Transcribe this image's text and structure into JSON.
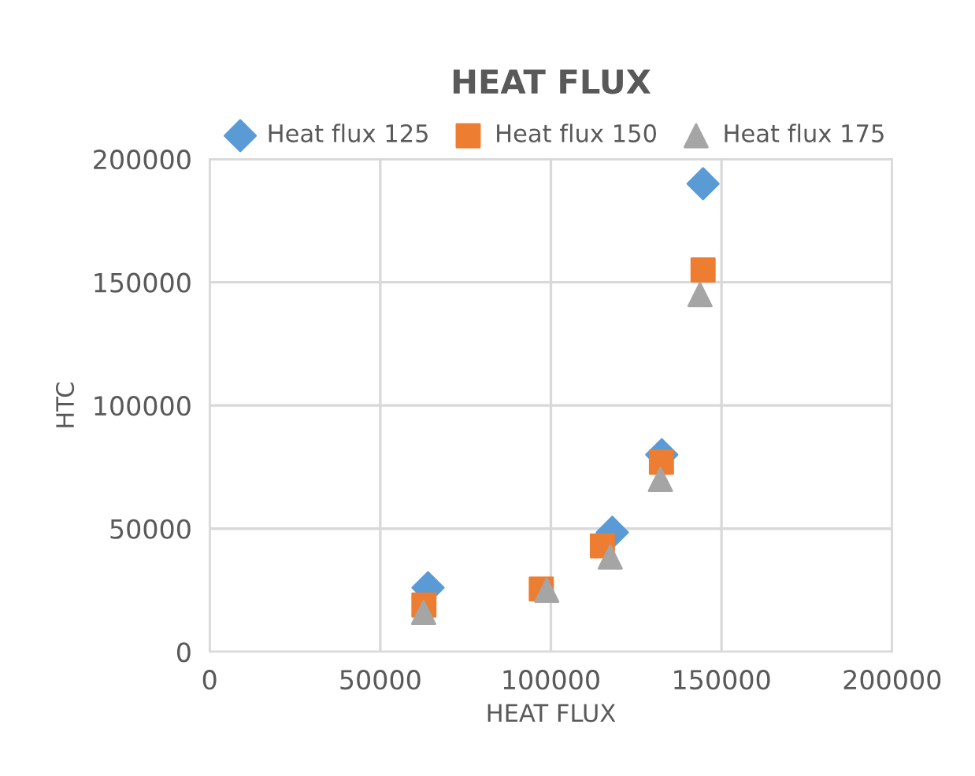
{
  "chart_data": {
    "type": "scatter",
    "title": "HEAT FLUX",
    "xlabel": "HEAT FLUX",
    "ylabel": "HTC",
    "legend": "top",
    "grid": true,
    "xlim": [
      0,
      200000
    ],
    "xticks": [
      0,
      50000,
      100000,
      150000,
      200000
    ],
    "ylim": [
      0,
      200000
    ],
    "yticks": [
      0,
      50000,
      100000,
      150000,
      200000
    ],
    "series": [
      {
        "name": "Heat flux 125",
        "color": "#5b9bd5",
        "marker": "diamond",
        "x": [
          64000,
          118000,
          132500,
          144600
        ],
        "values": [
          26000,
          48500,
          80000,
          190000
        ]
      },
      {
        "name": "Heat flux 150",
        "color": "#ed7d31",
        "marker": "square",
        "x": [
          62800,
          97200,
          115100,
          132400,
          144600
        ],
        "values": [
          19000,
          25500,
          43000,
          77000,
          155000
        ]
      },
      {
        "name": "Heat flux 175",
        "color": "#a5a5a5",
        "marker": "triangle",
        "x": [
          62700,
          98800,
          117400,
          132100,
          143700
        ],
        "values": [
          16000,
          25000,
          38500,
          70000,
          145000
        ]
      }
    ]
  }
}
